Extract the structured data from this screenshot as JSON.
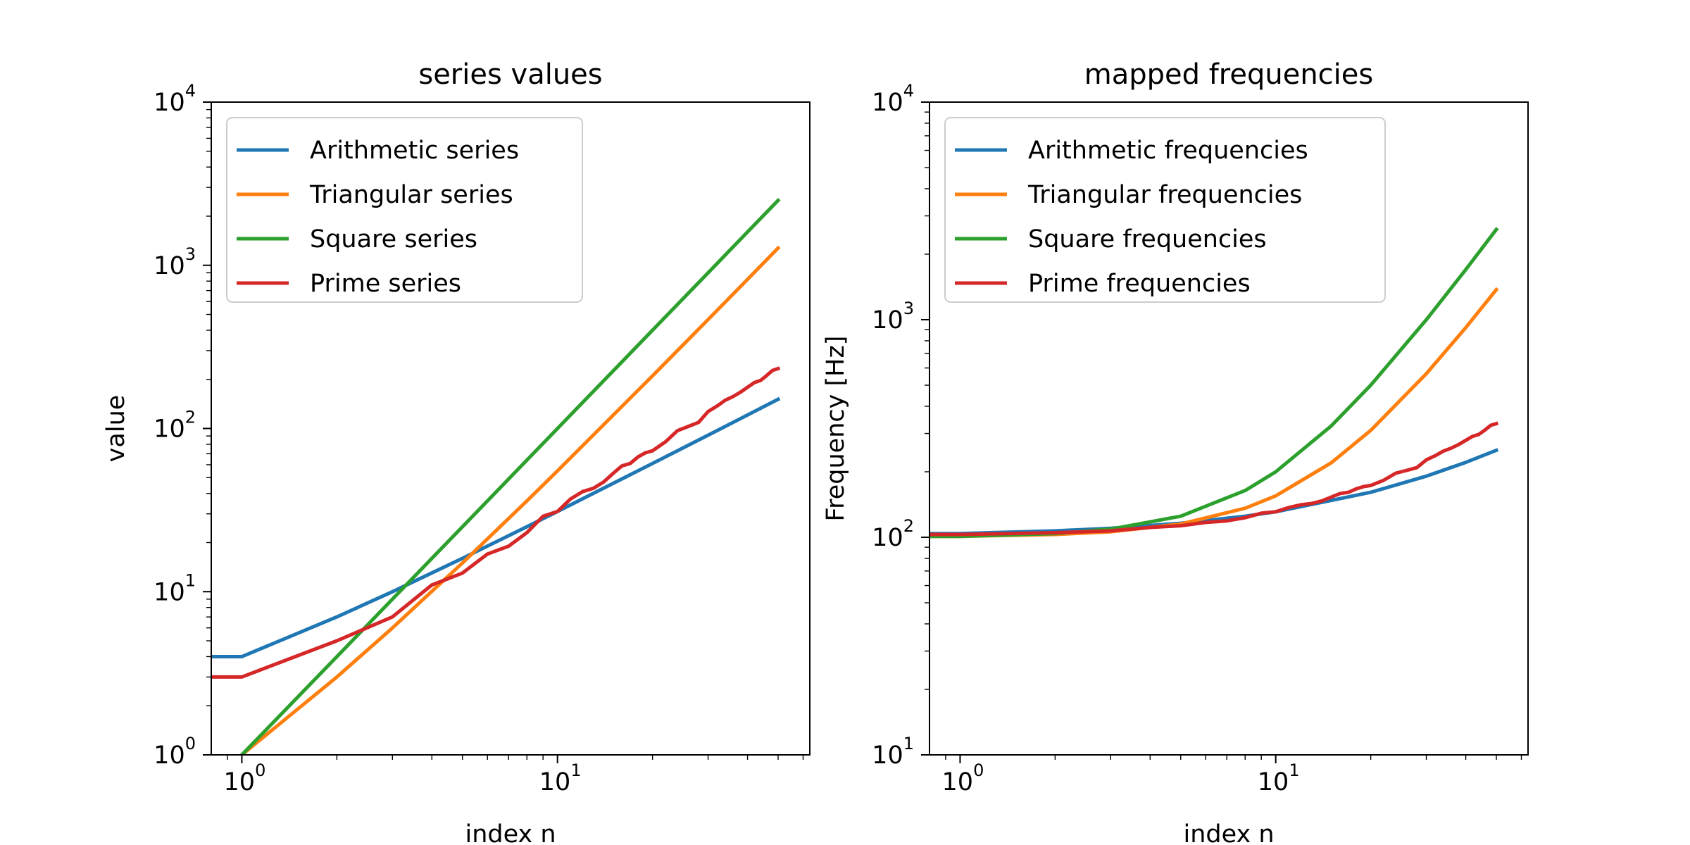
{
  "chart_data": [
    {
      "type": "line",
      "title": "series values",
      "xlabel": "index n",
      "ylabel": "value",
      "x_scale": "log",
      "y_scale": "log",
      "xlim": [
        0.8,
        63
      ],
      "ylim": [
        1,
        10000
      ],
      "x_ticks": [
        {
          "base": "10",
          "exp": "0",
          "value": 1
        },
        {
          "base": "10",
          "exp": "1",
          "value": 10
        }
      ],
      "y_ticks": [
        {
          "base": "10",
          "exp": "0",
          "value": 1
        },
        {
          "base": "10",
          "exp": "1",
          "value": 10
        },
        {
          "base": "10",
          "exp": "2",
          "value": 100
        },
        {
          "base": "10",
          "exp": "3",
          "value": 1000
        },
        {
          "base": "10",
          "exp": "4",
          "value": 10000
        }
      ],
      "grid": false,
      "legend_position": "upper-left",
      "series": [
        {
          "name": "Arithmetic series",
          "color": "#1f77b4",
          "x": [
            0.8,
            1,
            2,
            3,
            5,
            8,
            10,
            20,
            30,
            40,
            50
          ],
          "y": [
            4,
            4,
            7,
            10,
            16,
            25,
            31,
            61,
            91,
            121,
            151
          ]
        },
        {
          "name": "Triangular series",
          "color": "#ff7f0e",
          "x": [
            1,
            2,
            3,
            5,
            8,
            10,
            20,
            30,
            40,
            50
          ],
          "y": [
            1,
            3,
            6,
            15,
            36,
            55,
            210,
            465,
            820,
            1275
          ]
        },
        {
          "name": "Square series",
          "color": "#2ca02c",
          "x": [
            1,
            2,
            3,
            5,
            8,
            10,
            20,
            30,
            40,
            50
          ],
          "y": [
            1,
            4,
            9,
            25,
            64,
            100,
            400,
            900,
            1600,
            2500
          ]
        },
        {
          "name": "Prime series",
          "color": "#d62728",
          "x": [
            0.8,
            1,
            2,
            3,
            4,
            5,
            6,
            7,
            8,
            9,
            10,
            11,
            12,
            13,
            14,
            15,
            16,
            17,
            18,
            19,
            20,
            22,
            24,
            26,
            28,
            30,
            32,
            34,
            36,
            38,
            40,
            42,
            44,
            46,
            48,
            50
          ],
          "y": [
            3,
            3,
            5,
            7,
            11,
            13,
            17,
            19,
            23,
            29,
            31,
            37,
            41,
            43,
            47,
            53,
            59,
            61,
            67,
            71,
            73,
            83,
            97,
            103,
            109,
            127,
            137,
            149,
            157,
            167,
            179,
            191,
            197,
            211,
            227,
            233
          ]
        }
      ]
    },
    {
      "type": "line",
      "title": "mapped frequencies",
      "xlabel": "index n",
      "ylabel": "Frequency [Hz]",
      "x_scale": "log",
      "y_scale": "log",
      "xlim": [
        0.8,
        63
      ],
      "ylim": [
        10,
        10000
      ],
      "x_ticks": [
        {
          "base": "10",
          "exp": "0",
          "value": 1
        },
        {
          "base": "10",
          "exp": "1",
          "value": 10
        }
      ],
      "y_ticks": [
        {
          "base": "10",
          "exp": "1",
          "value": 10
        },
        {
          "base": "10",
          "exp": "2",
          "value": 100
        },
        {
          "base": "10",
          "exp": "3",
          "value": 1000
        },
        {
          "base": "10",
          "exp": "4",
          "value": 10000
        }
      ],
      "grid": false,
      "legend_position": "upper-left",
      "series": [
        {
          "name": "Arithmetic frequencies",
          "color": "#1f77b4",
          "x": [
            0.8,
            1,
            2,
            3,
            5,
            8,
            10,
            20,
            30,
            40,
            50
          ],
          "y": [
            104,
            104,
            107,
            110,
            116,
            125,
            131,
            161,
            191,
            221,
            251
          ]
        },
        {
          "name": "Triangular frequencies",
          "color": "#ff7f0e",
          "x": [
            0.8,
            1,
            2,
            3,
            5,
            8,
            10,
            15,
            20,
            30,
            40,
            50
          ],
          "y": [
            101,
            101,
            103,
            106,
            115,
            136,
            155,
            220,
            310,
            565,
            920,
            1375
          ]
        },
        {
          "name": "Square frequencies",
          "color": "#2ca02c",
          "x": [
            0.8,
            1,
            2,
            3,
            5,
            8,
            10,
            15,
            20,
            30,
            40,
            50
          ],
          "y": [
            101,
            101,
            104,
            109,
            125,
            164,
            200,
            325,
            500,
            1000,
            1700,
            2600
          ]
        },
        {
          "name": "Prime frequencies",
          "color": "#d62728",
          "x": [
            0.8,
            1,
            2,
            3,
            4,
            5,
            6,
            7,
            8,
            9,
            10,
            11,
            12,
            13,
            14,
            15,
            16,
            17,
            18,
            19,
            20,
            22,
            24,
            26,
            28,
            30,
            32,
            34,
            36,
            38,
            40,
            42,
            44,
            46,
            48,
            50
          ],
          "y": [
            103,
            103,
            105,
            107,
            111,
            113,
            117,
            119,
            123,
            129,
            131,
            137,
            141,
            143,
            147,
            153,
            159,
            161,
            167,
            171,
            173,
            183,
            197,
            203,
            209,
            227,
            237,
            249,
            257,
            267,
            279,
            291,
            297,
            311,
            327,
            333
          ]
        }
      ]
    }
  ]
}
